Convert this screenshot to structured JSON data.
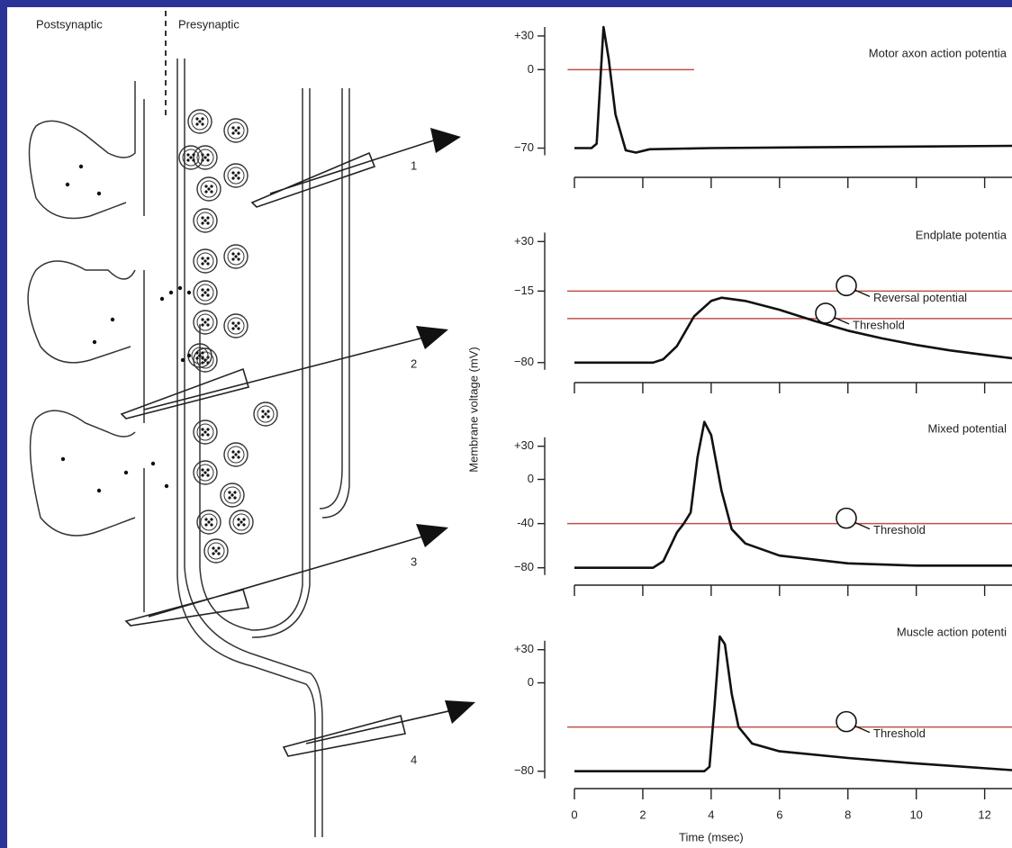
{
  "diagram": {
    "sides": [
      "Postsynaptic",
      "Presynaptic"
    ],
    "electrodes": [
      "1",
      "2",
      "3",
      "4"
    ]
  },
  "figure": {
    "ylabel": "Membrane voltage (mV)"
  },
  "chart_data": [
    {
      "type": "line",
      "title": "Motor axon action potentia",
      "x": [
        0,
        0.5,
        0.65,
        0.85,
        1.0,
        1.2,
        1.5,
        1.8,
        2.2,
        4,
        8,
        12.8
      ],
      "series": [
        {
          "color": "#111111",
          "values": [
            -70,
            -70,
            -66,
            38,
            10,
            -40,
            -72,
            -74,
            -71,
            -70,
            -69,
            -68
          ]
        }
      ],
      "ylim": [
        -80,
        42
      ],
      "yticks": [
        {
          "value": 30,
          "label": "+30"
        },
        0,
        {
          "value": -70,
          "label": "−70"
        }
      ],
      "xlim": [
        0,
        12.8
      ],
      "xticks": [
        0,
        2,
        4,
        6,
        8,
        10,
        12
      ],
      "ref_lines": [
        {
          "value": 0,
          "color": "#c0504d",
          "span": [
            -0.2,
            3.5
          ]
        }
      ]
    },
    {
      "type": "line",
      "title": "Endplate potentia",
      "x": [
        0,
        2.3,
        2.6,
        3,
        3.5,
        4,
        4.3,
        5,
        6,
        7,
        8,
        9,
        10,
        11,
        12,
        12.8
      ],
      "series": [
        {
          "color": "#111111",
          "values": [
            -80,
            -80,
            -77,
            -65,
            -38,
            -24,
            -21,
            -24,
            -32,
            -42,
            -51,
            -58,
            -64,
            -69,
            -73,
            -76
          ]
        }
      ],
      "ylim": [
        -90,
        45
      ],
      "yticks": [
        {
          "value": 30,
          "label": "+30"
        },
        {
          "value": -15,
          "label": "−15"
        },
        {
          "value": -80,
          "label": "−80"
        }
      ],
      "xlim": [
        0,
        12.8
      ],
      "xticks": [
        0,
        2,
        4,
        6,
        8,
        10,
        12
      ],
      "ref_lines": [
        {
          "value": -15,
          "color": "#c0504d",
          "label": "Reversal potential"
        },
        {
          "value": -40,
          "color": "#c0504d",
          "label": "Threshold"
        }
      ]
    },
    {
      "type": "line",
      "title": "Mixed potential",
      "x": [
        0,
        2.3,
        2.6,
        3,
        3.2,
        3.4,
        3.6,
        3.8,
        4.0,
        4.3,
        4.6,
        5,
        6,
        8,
        10,
        12.8
      ],
      "series": [
        {
          "color": "#111111",
          "values": [
            -80,
            -80,
            -74,
            -48,
            -40,
            -30,
            20,
            52,
            40,
            -10,
            -45,
            -58,
            -69,
            -76,
            -78,
            -78
          ]
        }
      ],
      "ylim": [
        -90,
        55
      ],
      "yticks": [
        {
          "value": 30,
          "label": "+30"
        },
        0,
        {
          "value": -40,
          "label": "-40"
        },
        {
          "value": -80,
          "label": "−80"
        }
      ],
      "xlim": [
        0,
        12.8
      ],
      "xticks": [
        0,
        2,
        4,
        6,
        8,
        10,
        12
      ],
      "ref_lines": [
        {
          "value": -40,
          "color": "#c0504d",
          "label": "Threshold"
        }
      ]
    },
    {
      "type": "line",
      "title": "Muscle action potenti",
      "x": [
        0,
        3.8,
        3.95,
        4.1,
        4.25,
        4.4,
        4.6,
        4.8,
        5.2,
        6,
        8,
        10,
        12.8
      ],
      "series": [
        {
          "color": "#111111",
          "values": [
            -80,
            -80,
            -76,
            -20,
            42,
            35,
            -10,
            -40,
            -55,
            -62,
            -68,
            -73,
            -79
          ]
        }
      ],
      "ylim": [
        -90,
        55
      ],
      "yticks": [
        {
          "value": 30,
          "label": "+30"
        },
        0,
        {
          "value": -80,
          "label": "−80"
        }
      ],
      "xlim": [
        0,
        12.8
      ],
      "xticks": [
        0,
        2,
        4,
        6,
        8,
        10,
        12
      ],
      "xtick_labels": true,
      "xlabel": "Time (msec)",
      "ref_lines": [
        {
          "value": -40,
          "color": "#c0504d",
          "label": "Threshold"
        }
      ]
    }
  ]
}
